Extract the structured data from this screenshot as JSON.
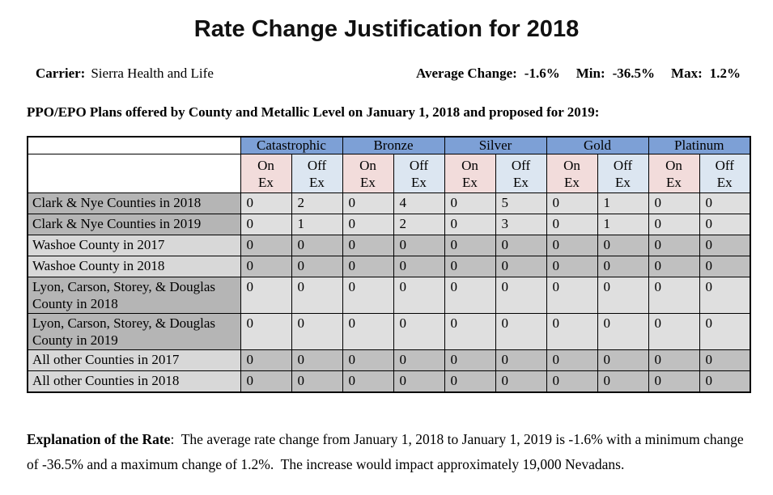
{
  "title": "Rate Change Justification for 2018",
  "info": {
    "carrier_label": "Carrier:",
    "carrier_value": "Sierra Health and Life",
    "average_label": "Average Change:",
    "average_value": "-1.6%",
    "min_label": "Min:",
    "min_value": "-36.5%",
    "max_label": "Max:",
    "max_value": "1.2%"
  },
  "subtitle": "PPO/EPO Plans offered by County and Metallic Level on January 1, 2018 and proposed for 2019:",
  "table": {
    "metal_levels": [
      "Catastrophic",
      "Bronze",
      "Silver",
      "Gold",
      "Platinum"
    ],
    "sub_headers": [
      "On\nEx",
      "Off\nEx"
    ],
    "rows": [
      {
        "label": "Clark & Nye Counties in 2018",
        "values": [
          0,
          2,
          0,
          4,
          0,
          5,
          0,
          1,
          0,
          0
        ],
        "shade": "dark-label"
      },
      {
        "label": "Clark & Nye Counties in 2019",
        "values": [
          0,
          1,
          0,
          2,
          0,
          3,
          0,
          1,
          0,
          0
        ],
        "shade": "dark-label"
      },
      {
        "label": "Washoe County in 2017",
        "values": [
          0,
          0,
          0,
          0,
          0,
          0,
          0,
          0,
          0,
          0
        ],
        "shade": "light-label"
      },
      {
        "label": "Washoe County in 2018",
        "values": [
          0,
          0,
          0,
          0,
          0,
          0,
          0,
          0,
          0,
          0
        ],
        "shade": "light-label"
      },
      {
        "label": "Lyon, Carson, Storey, & Douglas County in 2018",
        "values": [
          0,
          0,
          0,
          0,
          0,
          0,
          0,
          0,
          0,
          0
        ],
        "shade": "dark-label"
      },
      {
        "label": "Lyon, Carson, Storey, & Douglas County in 2019",
        "values": [
          0,
          0,
          0,
          0,
          0,
          0,
          0,
          0,
          0,
          0
        ],
        "shade": "dark-label"
      },
      {
        "label": "All other Counties in 2017",
        "values": [
          0,
          0,
          0,
          0,
          0,
          0,
          0,
          0,
          0,
          0
        ],
        "shade": "light-label"
      },
      {
        "label": "All other Counties in 2018",
        "values": [
          0,
          0,
          0,
          0,
          0,
          0,
          0,
          0,
          0,
          0
        ],
        "shade": "light-label"
      }
    ]
  },
  "explanation": {
    "label": "Explanation of the Rate",
    "text": ":  The average rate change from January 1, 2018 to January 1, 2019 is -1.6% with a minimum change of -36.5% and a maximum change of 1.2%.  The increase would impact approximately 19,000 Nevadans."
  },
  "colors": {
    "header_blue": "#7da0d6",
    "on_ex_pink": "#f2dcdb",
    "off_ex_blue": "#dce6f1",
    "dark_gray": "#b5b5b5",
    "light_gray": "#d8d8d8",
    "data_light": "#dfdfdf",
    "data_dark": "#c0c0c0"
  }
}
